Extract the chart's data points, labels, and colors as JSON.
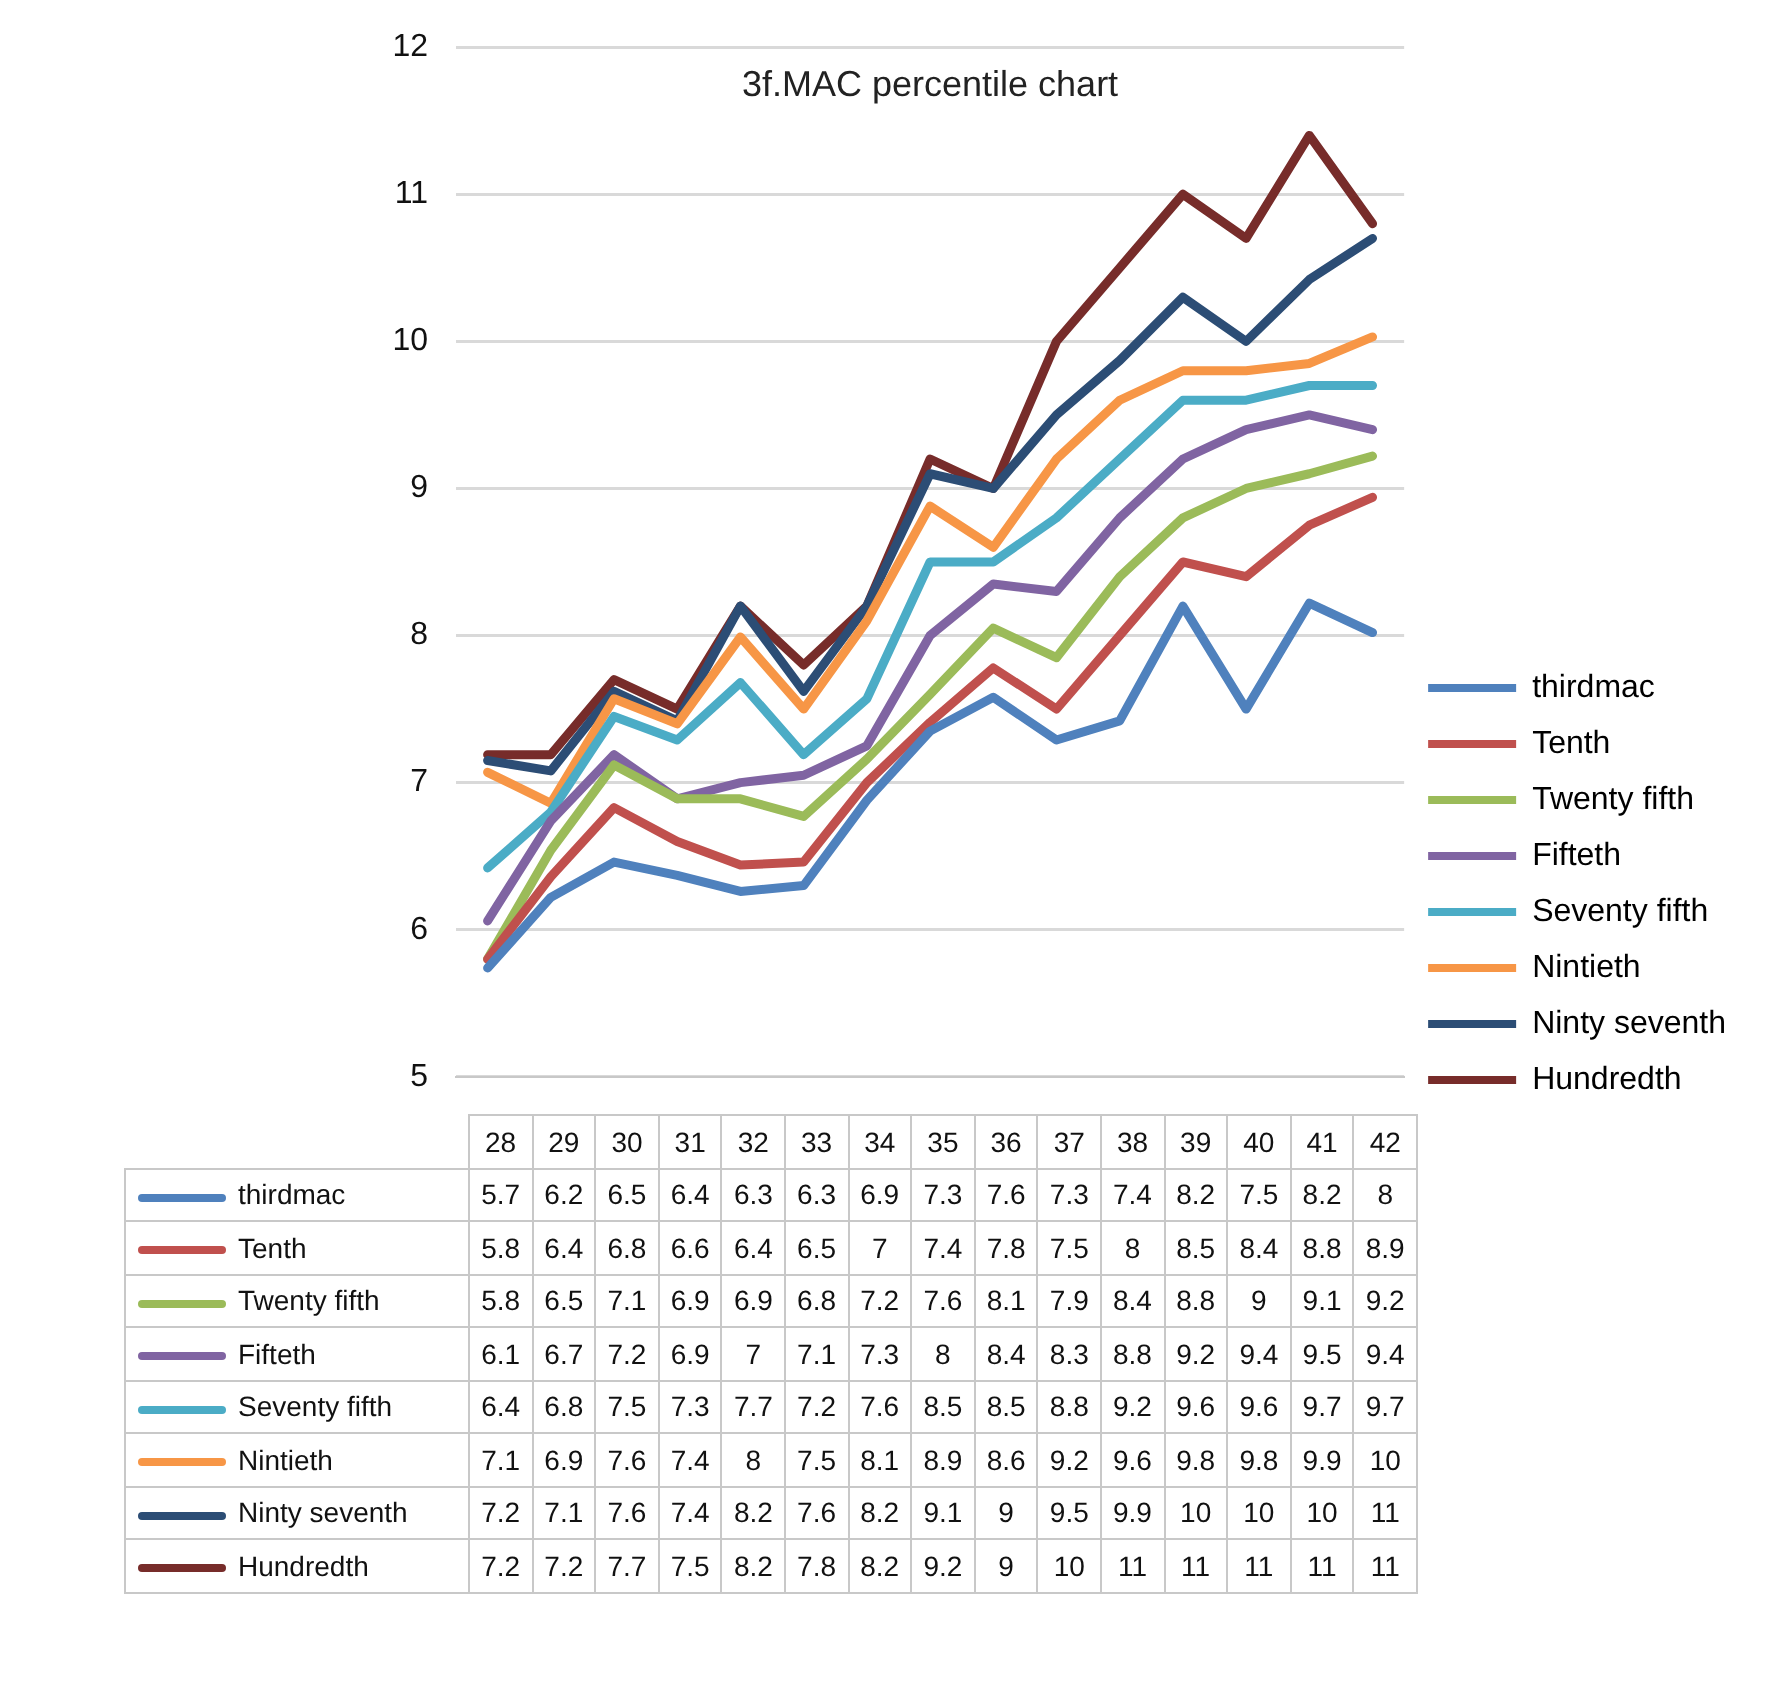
{
  "chart_data": {
    "type": "line",
    "title": "3f.MAC percentile chart",
    "categories": [
      "28",
      "29",
      "30",
      "31",
      "32",
      "33",
      "34",
      "35",
      "36",
      "37",
      "38",
      "39",
      "40",
      "41",
      "42"
    ],
    "ylim": [
      5,
      12
    ],
    "yticks": [
      5,
      6,
      7,
      8,
      9,
      10,
      11,
      12
    ],
    "grid": "y",
    "legend": "right",
    "marker": "none",
    "line_style": "solid",
    "series": [
      {
        "name": "thirdmac",
        "color": "#4f81bd",
        "values": [
          5.74,
          6.22,
          6.46,
          6.37,
          6.26,
          6.3,
          6.88,
          7.35,
          7.58,
          7.29,
          7.42,
          8.2,
          7.5,
          8.22,
          8.02
        ],
        "value_labels": [
          "5.7",
          "6.2",
          "6.5",
          "6.4",
          "6.3",
          "6.3",
          "6.9",
          "7.3",
          "7.6",
          "7.3",
          "7.4",
          "8.2",
          "7.5",
          "8.2",
          "8"
        ]
      },
      {
        "name": "Tenth",
        "color": "#c0504d",
        "values": [
          5.8,
          6.36,
          6.83,
          6.6,
          6.44,
          6.46,
          7.0,
          7.41,
          7.78,
          7.5,
          8.0,
          8.5,
          8.4,
          8.75,
          8.94
        ],
        "value_labels": [
          "5.8",
          "6.4",
          "6.8",
          "6.6",
          "6.4",
          "6.5",
          "7",
          "7.4",
          "7.8",
          "7.5",
          "8",
          "8.5",
          "8.4",
          "8.8",
          "8.9"
        ]
      },
      {
        "name": "Twenty fifth",
        "color": "#9bbb59",
        "values": [
          5.8,
          6.54,
          7.12,
          6.89,
          6.89,
          6.77,
          7.16,
          7.6,
          8.05,
          7.85,
          8.4,
          8.8,
          9.0,
          9.1,
          9.22
        ],
        "value_labels": [
          "5.8",
          "6.5",
          "7.1",
          "6.9",
          "6.9",
          "6.8",
          "7.2",
          "7.6",
          "8.1",
          "7.9",
          "8.4",
          "8.8",
          "9",
          "9.1",
          "9.2"
        ]
      },
      {
        "name": "Fifteth",
        "color": "#8064a2",
        "values": [
          6.06,
          6.74,
          7.19,
          6.89,
          7.0,
          7.05,
          7.25,
          8.0,
          8.35,
          8.3,
          8.8,
          9.2,
          9.4,
          9.5,
          9.4
        ],
        "value_labels": [
          "6.1",
          "6.7",
          "7.2",
          "6.9",
          "7",
          "7.1",
          "7.3",
          "8",
          "8.4",
          "8.3",
          "8.8",
          "9.2",
          "9.4",
          "9.5",
          "9.4"
        ]
      },
      {
        "name": "Seventy fifth",
        "color": "#4bacc6",
        "values": [
          6.42,
          6.8,
          7.45,
          7.29,
          7.68,
          7.19,
          7.57,
          8.5,
          8.5,
          8.8,
          9.2,
          9.6,
          9.6,
          9.7,
          9.7
        ],
        "value_labels": [
          "6.4",
          "6.8",
          "7.5",
          "7.3",
          "7.7",
          "7.2",
          "7.6",
          "8.5",
          "8.5",
          "8.8",
          "9.2",
          "9.6",
          "9.6",
          "9.7",
          "9.7"
        ]
      },
      {
        "name": "Nintieth",
        "color": "#f79646",
        "values": [
          7.07,
          6.86,
          7.57,
          7.4,
          7.99,
          7.5,
          8.1,
          8.88,
          8.6,
          9.2,
          9.6,
          9.8,
          9.8,
          9.85,
          10.03
        ],
        "value_labels": [
          "7.1",
          "6.9",
          "7.6",
          "7.4",
          "8",
          "7.5",
          "8.1",
          "8.9",
          "8.6",
          "9.2",
          "9.6",
          "9.8",
          "9.8",
          "9.9",
          "10"
        ]
      },
      {
        "name": "Ninty seventh",
        "color": "#2c4d75",
        "values": [
          7.15,
          7.08,
          7.62,
          7.42,
          8.2,
          7.62,
          8.2,
          9.1,
          9.0,
          9.5,
          9.87,
          10.3,
          10.0,
          10.42,
          10.7
        ],
        "value_labels": [
          "7.2",
          "7.1",
          "7.6",
          "7.4",
          "8.2",
          "7.6",
          "8.2",
          "9.1",
          "9",
          "9.5",
          "9.9",
          "10",
          "10",
          "10",
          "11"
        ]
      },
      {
        "name": "Hundredth",
        "color": "#772c2a",
        "values": [
          7.19,
          7.19,
          7.7,
          7.5,
          8.2,
          7.8,
          8.2,
          9.2,
          9.0,
          10.0,
          10.5,
          11.0,
          10.7,
          11.4,
          10.8
        ],
        "value_labels": [
          "7.2",
          "7.2",
          "7.7",
          "7.5",
          "8.2",
          "7.8",
          "8.2",
          "9.2",
          "9",
          "10",
          "11",
          "11",
          "11",
          "11",
          "11"
        ]
      }
    ]
  }
}
